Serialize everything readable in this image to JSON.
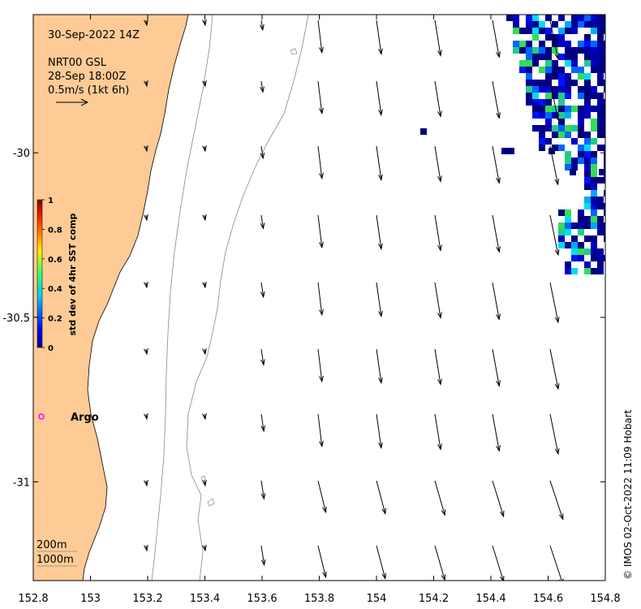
{
  "map": {
    "date_label": "30-Sep-2022 14Z",
    "product_label": "NRT00 GSL",
    "product_time": "28-Sep 18:00Z",
    "scale_label": "0.5m/s (1kt 6h)",
    "argo_label": "Argo",
    "contour_labels": [
      "200m",
      "1000m"
    ],
    "credit": "© IMOS 02-Oct-2022 11:09 Hobart",
    "land_color": "#fecb96",
    "argo_color": "#ff00ff",
    "x_ticks": [
      "152.8",
      "153",
      "153.2",
      "153.4",
      "153.6",
      "153.8",
      "154",
      "154.2",
      "154.4",
      "154.6",
      "154.8"
    ],
    "y_ticks": [
      "-30",
      "-30.5",
      "-31"
    ],
    "x_range": [
      152.8,
      154.8
    ],
    "y_range": [
      -29.58,
      -31.3
    ]
  },
  "colorbar": {
    "title": "std dev of 4hr SST comp",
    "ticks": [
      "1",
      "0.8",
      "0.6",
      "0.4",
      "0.2",
      "0"
    ],
    "colormap": "jet"
  }
}
